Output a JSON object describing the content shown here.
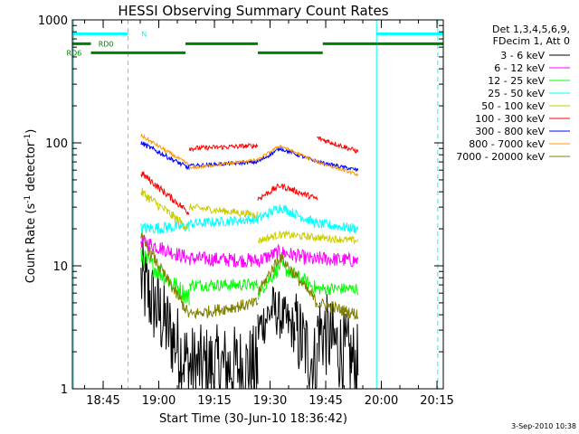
{
  "chart_data": {
    "type": "line",
    "title": "HESSI Observing Summary Count Rates",
    "xlabel": "Start Time (30-Jun-10 18:36:42)",
    "ylabel": "Count Rate (s⁻¹ detector⁻¹)",
    "ylabel_main": "Count Rate (s",
    "ylabel_sup1": "-1",
    "ylabel_mid": " detector",
    "ylabel_sup2": "-1",
    "ylabel_end": ")",
    "x_range_minutes": [
      0,
      100
    ],
    "y_scale": "log",
    "ylim": [
      1,
      1000
    ],
    "x_ticks": [
      {
        "minute": 8.3,
        "label": "18:45"
      },
      {
        "minute": 23.3,
        "label": "19:00"
      },
      {
        "minute": 38.3,
        "label": "19:15"
      },
      {
        "minute": 53.3,
        "label": "19:30"
      },
      {
        "minute": 68.3,
        "label": "19:45"
      },
      {
        "minute": 83.3,
        "label": "20:00"
      },
      {
        "minute": 98.3,
        "label": "20:15"
      }
    ],
    "y_ticks": [
      {
        "value": 1,
        "label": "1"
      },
      {
        "value": 10,
        "label": "10"
      },
      {
        "value": 100,
        "label": "100"
      },
      {
        "value": 1000,
        "label": "1000"
      }
    ],
    "legend": {
      "header": [
        "Det 1,3,4,5,6,9,",
        "FDecim 1, Att 0"
      ],
      "placement": "right"
    },
    "series": [
      {
        "name": "3 - 6 keV",
        "color": "#000000",
        "segments": [
          {
            "x": [
              18.5,
              31.5
            ],
            "y": [
              7.5,
              1.5
            ],
            "noise": 0.35
          },
          {
            "x": [
              31.5,
              50.0
            ],
            "y": [
              1.5,
              1.5
            ],
            "noise": 0.35
          },
          {
            "x": [
              50.0,
              54.0,
              60.0
            ],
            "y": [
              3.0,
              4.5,
              3.0
            ],
            "noise": 0.2
          },
          {
            "x": [
              60.0,
              66.0
            ],
            "y": [
              3.0,
              1.5
            ],
            "noise": 0.35
          },
          {
            "x": [
              66.0,
              77.0
            ],
            "y": [
              3.2,
              1.5
            ],
            "noise": 0.35
          }
        ]
      },
      {
        "name": "6 - 12 keV",
        "color": "#ff00ff",
        "segments": [
          {
            "x": [
              18.5,
              31.5
            ],
            "y": [
              16.0,
              11.5
            ],
            "noise": 0.06
          },
          {
            "x": [
              31.5,
              50.0
            ],
            "y": [
              11.5,
              11.0
            ],
            "noise": 0.06
          },
          {
            "x": [
              50.0,
              56.0,
              66.0
            ],
            "y": [
              11.0,
              13.0,
              11.0
            ],
            "noise": 0.06
          },
          {
            "x": [
              66.0,
              77.0
            ],
            "y": [
              11.5,
              11.0
            ],
            "noise": 0.06
          }
        ]
      },
      {
        "name": "12 - 25 keV",
        "color": "#00ff00",
        "segments": [
          {
            "x": [
              18.5,
              31.5
            ],
            "y": [
              12.0,
              5.5
            ],
            "noise": 0.08
          },
          {
            "x": [
              31.5,
              50.0
            ],
            "y": [
              7.0,
              7.0
            ],
            "noise": 0.05
          },
          {
            "x": [
              50.0,
              56.0,
              66.0
            ],
            "y": [
              6.0,
              10.0,
              6.5
            ],
            "noise": 0.06
          },
          {
            "x": [
              66.0,
              77.0
            ],
            "y": [
              6.5,
              6.5
            ],
            "noise": 0.05
          }
        ]
      },
      {
        "name": "25 - 50 keV",
        "color": "#00ffff",
        "segments": [
          {
            "x": [
              18.5,
              31.5
            ],
            "y": [
              20.0,
              21.0
            ],
            "noise": 0.05
          },
          {
            "x": [
              31.5,
              50.0
            ],
            "y": [
              22.0,
              24.0
            ],
            "noise": 0.04
          },
          {
            "x": [
              50.0,
              56.0,
              66.0
            ],
            "y": [
              24.0,
              30.0,
              22.0
            ],
            "noise": 0.04
          },
          {
            "x": [
              66.0,
              77.0
            ],
            "y": [
              22.0,
              20.0
            ],
            "noise": 0.04
          }
        ]
      },
      {
        "name": "50 - 100 keV",
        "color": "#cccc00",
        "segments": [
          {
            "x": [
              18.5,
              31.5
            ],
            "y": [
              40.0,
              20.0
            ],
            "noise": 0.04
          },
          {
            "x": [
              31.5,
              50.0
            ],
            "y": [
              30.0,
              26.0
            ],
            "noise": 0.03
          },
          {
            "x": [
              50.0,
              56.0,
              66.0
            ],
            "y": [
              16.0,
              18.0,
              17.0
            ],
            "noise": 0.03
          },
          {
            "x": [
              66.0,
              77.0
            ],
            "y": [
              17.0,
              16.0
            ],
            "noise": 0.03
          }
        ]
      },
      {
        "name": "100 - 300 keV",
        "color": "#ff0000",
        "segments": [
          {
            "x": [
              18.5,
              31.5
            ],
            "y": [
              57.0,
              27.0
            ],
            "noise": 0.03
          },
          {
            "x": [
              31.5,
              50.0
            ],
            "y": [
              90.0,
              95.0
            ],
            "noise": 0.02
          },
          {
            "x": [
              50.0,
              56.0,
              66.0
            ],
            "y": [
              35.0,
              45.0,
              35.0
            ],
            "noise": 0.025
          },
          {
            "x": [
              66.0,
              77.0
            ],
            "y": [
              110.0,
              85.0
            ],
            "noise": 0.02
          }
        ]
      },
      {
        "name": "300 - 800 keV",
        "color": "#0000ff",
        "segments": [
          {
            "x": [
              18.5,
              31.5
            ],
            "y": [
              100.0,
              62.0
            ],
            "noise": 0.02
          },
          {
            "x": [
              31.5,
              50.0
            ],
            "y": [
              65.0,
              70.0
            ],
            "noise": 0.015
          },
          {
            "x": [
              50.0,
              56.0,
              66.0
            ],
            "y": [
              70.0,
              90.0,
              70.0
            ],
            "noise": 0.015
          },
          {
            "x": [
              66.0,
              77.0
            ],
            "y": [
              70.0,
              60.0
            ],
            "noise": 0.015
          }
        ]
      },
      {
        "name": "800 - 7000 keV",
        "color": "#ff9900",
        "segments": [
          {
            "x": [
              18.5,
              31.5
            ],
            "y": [
              115.0,
              66.0
            ],
            "noise": 0.015
          },
          {
            "x": [
              31.5,
              50.0
            ],
            "y": [
              62.0,
              73.0
            ],
            "noise": 0.012
          },
          {
            "x": [
              50.0,
              56.0,
              66.0
            ],
            "y": [
              73.0,
              95.0,
              70.0
            ],
            "noise": 0.012
          },
          {
            "x": [
              66.0,
              77.0
            ],
            "y": [
              70.0,
              55.0
            ],
            "noise": 0.012
          }
        ]
      },
      {
        "name": "7000 - 20000 keV",
        "color": "#808000",
        "segments": [
          {
            "x": [
              18.5,
              31.5
            ],
            "y": [
              17.0,
              4.0
            ],
            "noise": 0.05
          },
          {
            "x": [
              31.5,
              50.0
            ],
            "y": [
              4.0,
              5.0
            ],
            "noise": 0.05
          },
          {
            "x": [
              50.0,
              56.0,
              66.0
            ],
            "y": [
              6.0,
              12.0,
              5.0
            ],
            "noise": 0.05
          },
          {
            "x": [
              66.0,
              77.0
            ],
            "y": [
              5.0,
              4.0
            ],
            "noise": 0.05
          }
        ]
      }
    ],
    "flag_bars": [
      {
        "label": "N",
        "color": "#00ffff",
        "y_level": 770,
        "ranges": [
          [
            0,
            15
          ],
          [
            82,
            100
          ]
        ]
      },
      {
        "label": "RD0",
        "color": "#008000",
        "y_level": 640,
        "ranges": [
          [
            0,
            5
          ],
          [
            30.5,
            50
          ],
          [
            67.5,
            100
          ]
        ]
      },
      {
        "label": "RD6",
        "color": "#008000",
        "y_level": 540,
        "ranges": [
          [
            5,
            30.5
          ],
          [
            50,
            67.5
          ]
        ]
      }
    ],
    "vertical_lines": [
      {
        "minute": 0.3,
        "color": "#00ffff",
        "dashed": false
      },
      {
        "minute": 15.0,
        "color": "#00ffff",
        "dashed": true
      },
      {
        "minute": 82.0,
        "color": "#00ffff",
        "dashed": false
      },
      {
        "minute": 98.5,
        "color": "#00ffff",
        "dashed": true
      }
    ],
    "footer_date": "3-Sep-2010 10:38"
  }
}
